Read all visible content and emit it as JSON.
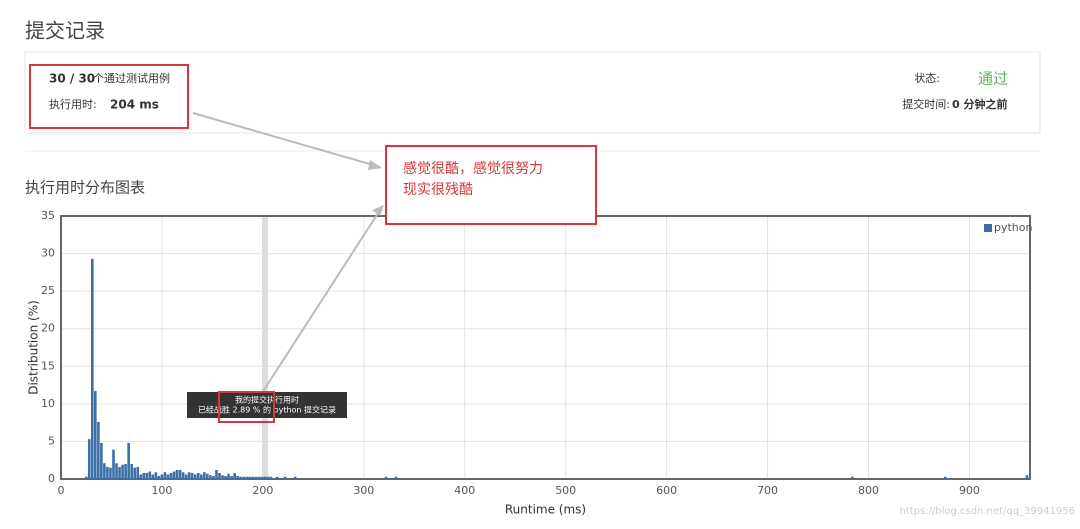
{
  "header": {
    "title": "提交记录"
  },
  "summary": {
    "passed": "30 / 30",
    "passed_label": "个通过测试用例",
    "runtime_label": "执行用时:",
    "runtime": "204 ms",
    "status_label": "状态:",
    "status": "通过",
    "time_label": "提交时间:",
    "time": "0 分钟之前"
  },
  "annotation": {
    "line1": "感觉很酷，感觉很努力",
    "line2": "现实很残酷"
  },
  "tooltip": {
    "line1": "我的提交执行用时",
    "line2": "已经战胜 2.89 % 的 python 提交记录"
  },
  "watermark": "https://blog.csdn.net/qq_39941956",
  "chart_data": {
    "type": "bar",
    "title": "执行用时分布图表",
    "x_label": "Runtime (ms)",
    "y_label": "Distribution (%)",
    "xlim": [
      0,
      960
    ],
    "ylim": [
      0,
      35
    ],
    "xticks": [
      0,
      100,
      200,
      300,
      400,
      500,
      600,
      700,
      800,
      900
    ],
    "yticks": [
      0,
      5,
      10,
      15,
      20,
      25,
      30,
      35
    ],
    "grid": true,
    "legend": "top-right",
    "x": [
      25,
      28,
      31,
      34,
      37,
      40,
      43,
      46,
      49,
      52,
      55,
      58,
      61,
      64,
      67,
      70,
      73,
      76,
      79,
      82,
      85,
      88,
      91,
      94,
      97,
      100,
      103,
      106,
      109,
      112,
      115,
      118,
      121,
      124,
      127,
      130,
      133,
      136,
      139,
      142,
      145,
      148,
      151,
      154,
      157,
      160,
      163,
      166,
      169,
      172,
      175,
      178,
      181,
      184,
      187,
      190,
      193,
      196,
      199,
      202,
      205,
      208,
      214,
      222,
      232,
      322,
      332,
      784,
      876,
      957
    ],
    "series": [
      {
        "name": "python",
        "color": "#3a6fa8",
        "values": [
          0.3,
          5.3,
          29.3,
          11.7,
          7.6,
          4.8,
          2.1,
          1.6,
          1.5,
          3.9,
          2.1,
          1.6,
          1.9,
          2.0,
          4.8,
          2.0,
          1.5,
          1.6,
          0.6,
          0.8,
          0.8,
          1.0,
          0.6,
          0.9,
          0.4,
          0.6,
          0.9,
          0.6,
          0.8,
          1.0,
          1.2,
          1.2,
          0.9,
          0.6,
          0.9,
          0.8,
          0.6,
          0.8,
          0.6,
          0.9,
          0.7,
          0.5,
          0.4,
          1.2,
          0.8,
          0.5,
          0.4,
          0.7,
          0.4,
          0.8,
          0.4,
          0.3,
          0.3,
          0.3,
          0.3,
          0.3,
          0.3,
          0.3,
          0.3,
          0.3,
          0.3,
          0.3,
          0.3,
          0.3,
          0.3,
          0.3,
          0.3,
          0.3,
          0.3,
          0.5
        ]
      }
    ]
  }
}
